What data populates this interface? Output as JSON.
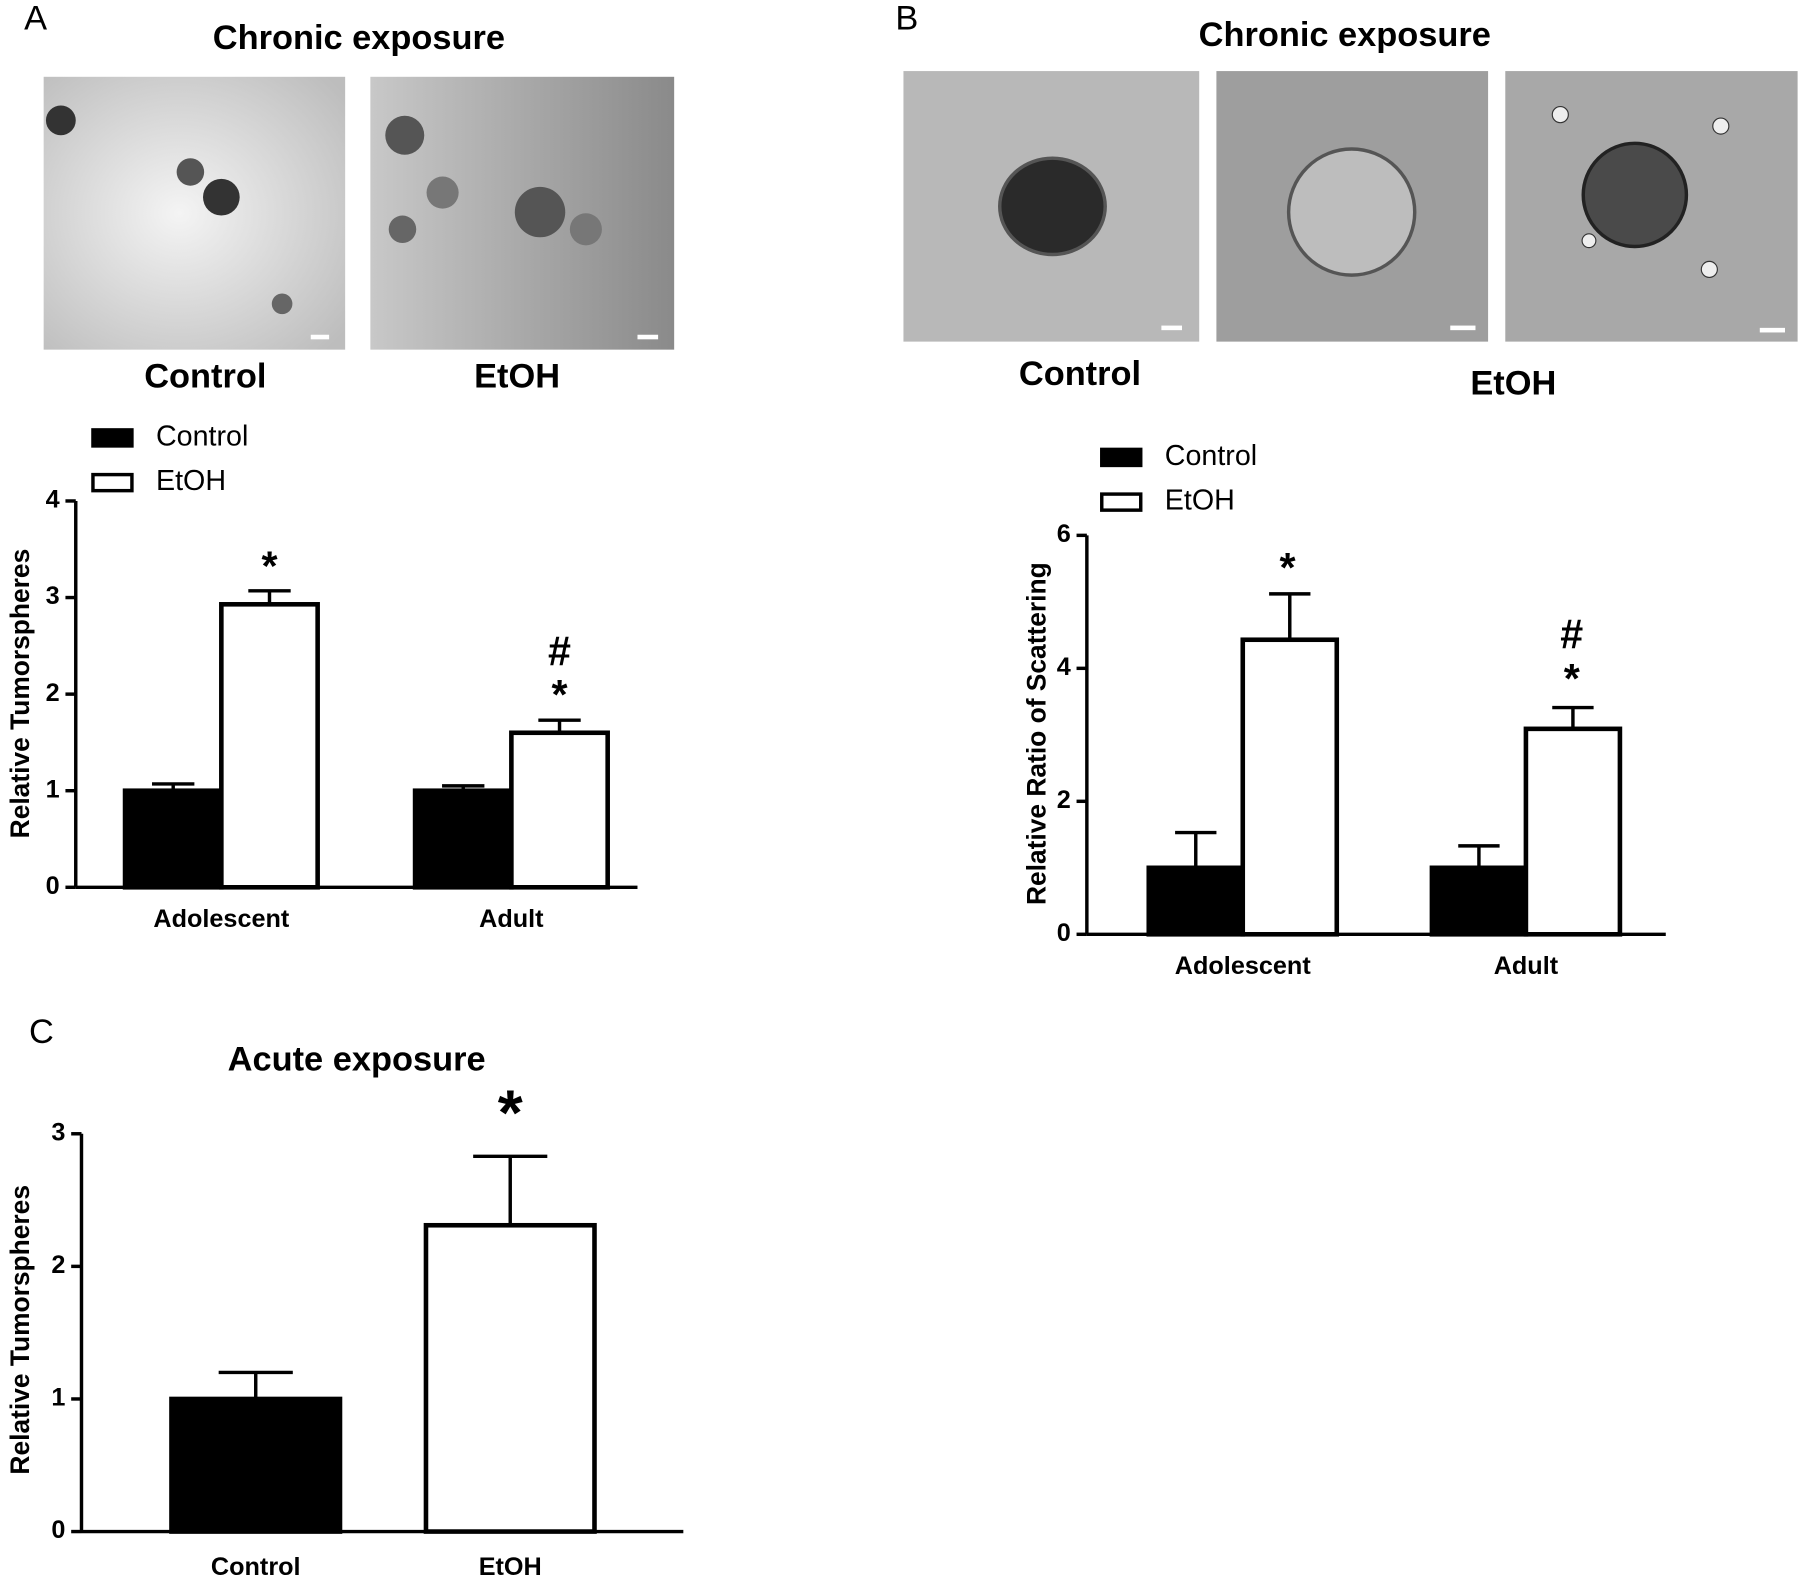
{
  "chart_data": [
    {
      "type": "bar",
      "panel": "A",
      "title": "Chronic exposure",
      "image_labels": [
        "Control",
        "EtOH"
      ],
      "categories": [
        "Adolescent",
        "Adult"
      ],
      "series": [
        {
          "name": "Control",
          "color": "#000000",
          "values": [
            1,
            1
          ],
          "errors": [
            0.07,
            0.05
          ]
        },
        {
          "name": "EtOH",
          "color": "#ffffff",
          "values": [
            2.93,
            1.6
          ],
          "errors": [
            0.14,
            0.13
          ]
        }
      ],
      "ylabel": "Relative Tumorspheres",
      "ylim": [
        0,
        4
      ],
      "yticks": [
        0,
        1,
        2,
        3,
        4
      ],
      "annotations": [
        "*",
        "#",
        "*"
      ]
    },
    {
      "type": "bar",
      "panel": "B",
      "title": "Chronic exposure",
      "image_labels": [
        "Control",
        "EtOH"
      ],
      "categories": [
        "Adolescent",
        "Adult"
      ],
      "series": [
        {
          "name": "Control",
          "color": "#000000",
          "values": [
            1,
            1
          ],
          "errors": [
            0.53,
            0.33
          ]
        },
        {
          "name": "EtOH",
          "color": "#ffffff",
          "values": [
            4.43,
            3.09
          ],
          "errors": [
            0.69,
            0.32
          ]
        }
      ],
      "ylabel": "Relative Ratio of Scattering",
      "ylim": [
        0,
        6
      ],
      "yticks": [
        0,
        2,
        4,
        6
      ],
      "annotations": [
        "*",
        "#",
        "*"
      ]
    },
    {
      "type": "bar",
      "panel": "C",
      "title": "Acute exposure",
      "categories": [
        "Control",
        "EtOH"
      ],
      "values": [
        1,
        2.31
      ],
      "errors": [
        0.2,
        0.52
      ],
      "colors": [
        "#000000",
        "#ffffff"
      ],
      "ylabel": "Relative Tumorspheres",
      "ylim": [
        0,
        3
      ],
      "yticks": [
        0,
        1,
        2,
        3
      ],
      "annotations": [
        "*"
      ]
    }
  ]
}
